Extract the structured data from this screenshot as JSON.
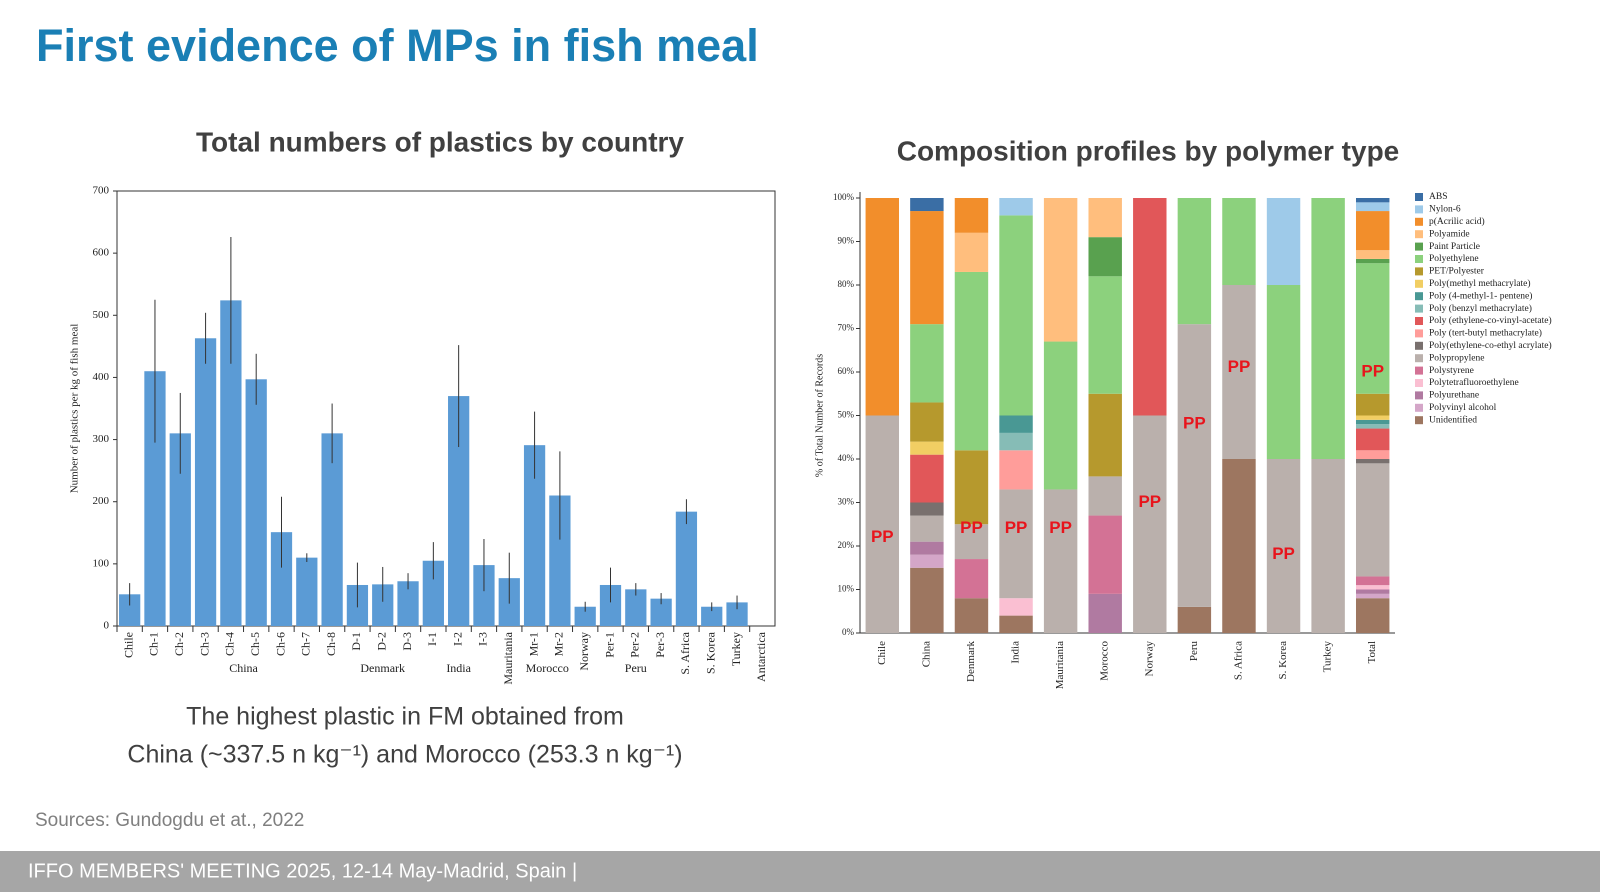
{
  "slide": {
    "title": "First evidence of MPs in fish meal",
    "caption": [
      "The highest plastic in FM obtained from",
      "China (~337.5 n kg⁻¹) and Morocco (253.3 n kg⁻¹)"
    ],
    "source": "Sources: Gundogdu et at., 2022",
    "footer": "IFFO MEMBERS' MEETING 2025, 12-14 May-Madrid, Spain |"
  },
  "chart_data": [
    {
      "type": "bar",
      "title": "Total numbers of plastics by country",
      "ylabel": "Number of plastics per kg of fish meal",
      "categories": [
        "Chile",
        "Ch-1",
        "Ch-2",
        "Ch-3",
        "Ch-4",
        "Ch-5",
        "Ch-6",
        "Ch-7",
        "Ch-8",
        "D-1",
        "D-2",
        "D-3",
        "I-1",
        "I-2",
        "I-3",
        "Mauritania",
        "Mr-1",
        "Mr-2",
        "Norway",
        "Per-1",
        "Per-2",
        "Per-3",
        "S. Africa",
        "S. Korea",
        "Turkey",
        "Antarctica"
      ],
      "values": [
        51,
        410,
        310,
        463,
        524,
        397,
        151,
        110,
        310,
        66,
        67,
        72,
        105,
        370,
        98,
        77,
        291,
        210,
        31,
        66,
        59,
        44,
        184,
        31,
        38,
        0
      ],
      "errors": [
        18,
        115,
        65,
        41,
        102,
        41,
        57,
        7,
        48,
        36,
        28,
        13,
        30,
        82,
        42,
        41,
        54,
        71,
        8,
        28,
        10,
        9,
        20,
        7,
        11,
        0
      ],
      "groups": [
        {
          "name": "China",
          "first": 1,
          "last": 8
        },
        {
          "name": "Denmark",
          "first": 9,
          "last": 11
        },
        {
          "name": "India",
          "first": 12,
          "last": 14
        },
        {
          "name": "Morocco",
          "first": 16,
          "last": 17
        },
        {
          "name": "Peru",
          "first": 19,
          "last": 21
        }
      ],
      "color": "#5b9bd5",
      "ylim": [
        0,
        700
      ],
      "yticks": [
        0,
        100,
        200,
        300,
        400,
        500,
        600,
        700
      ]
    },
    {
      "type": "stacked_bar",
      "title": "Composition profiles by polymer type",
      "ylabel": "% of Total Number of Records",
      "categories": [
        "Chile",
        "China",
        "Denmark",
        "India",
        "Mauritania",
        "Morocco",
        "Norway",
        "Peru",
        "S. Africa",
        "S. Korea",
        "Turkey",
        "Total"
      ],
      "series": [
        {
          "name": "ABS",
          "color": "#3a6ea5",
          "values": [
            0,
            3,
            0,
            0,
            0,
            0,
            0,
            0,
            0,
            0,
            0,
            1
          ]
        },
        {
          "name": "Nylon-6",
          "color": "#9ecae9",
          "values": [
            0,
            0,
            0,
            4,
            0,
            0,
            0,
            0,
            0,
            20,
            0,
            2
          ]
        },
        {
          "name": "p(Acrilic acid)",
          "color": "#f28e2b",
          "values": [
            50,
            26,
            8,
            0,
            0,
            0,
            0,
            0,
            0,
            0,
            0,
            9
          ]
        },
        {
          "name": "Polyamide",
          "color": "#ffbe7d",
          "values": [
            0,
            0,
            9,
            0,
            33,
            9,
            0,
            0,
            0,
            0,
            0,
            2
          ]
        },
        {
          "name": "Paint Particle",
          "color": "#59a14f",
          "values": [
            0,
            0,
            0,
            0,
            0,
            9,
            0,
            0,
            0,
            0,
            0,
            1
          ]
        },
        {
          "name": "Polyethylene",
          "color": "#8cd17d",
          "values": [
            0,
            18,
            41,
            46,
            34,
            27,
            0,
            29,
            20,
            40,
            60,
            30
          ]
        },
        {
          "name": "PET/Polyester",
          "color": "#b6992d",
          "values": [
            0,
            9,
            17,
            0,
            0,
            19,
            0,
            0,
            0,
            0,
            0,
            5
          ]
        },
        {
          "name": "Poly(methyl methacrylate)",
          "color": "#f1ce63",
          "values": [
            0,
            3,
            0,
            0,
            0,
            0,
            0,
            0,
            0,
            0,
            0,
            1
          ]
        },
        {
          "name": "Poly (4-methyl-1- pentene)",
          "color": "#499894",
          "values": [
            0,
            0,
            0,
            4,
            0,
            0,
            0,
            0,
            0,
            0,
            0,
            1
          ]
        },
        {
          "name": "Poly (benzyl methacrylate)",
          "color": "#86bcb6",
          "values": [
            0,
            0,
            0,
            4,
            0,
            0,
            0,
            0,
            0,
            0,
            0,
            1
          ]
        },
        {
          "name": "Poly (ethylene-co-vinyl-acetate)",
          "color": "#e15759",
          "values": [
            0,
            11,
            0,
            0,
            0,
            0,
            50,
            0,
            0,
            0,
            0,
            5
          ]
        },
        {
          "name": "Poly (tert-butyl methacrylate)",
          "color": "#ff9d9a",
          "values": [
            0,
            0,
            0,
            9,
            0,
            0,
            0,
            0,
            0,
            0,
            0,
            2
          ]
        },
        {
          "name": "Poly(ethylene-co-ethyl acrylate)",
          "color": "#79706e",
          "values": [
            0,
            3,
            0,
            0,
            0,
            0,
            0,
            0,
            0,
            0,
            0,
            1
          ]
        },
        {
          "name": "Polypropylene",
          "color": "#bab0ac",
          "values": [
            50,
            6,
            8,
            25,
            33,
            9,
            50,
            65,
            40,
            40,
            40,
            26
          ]
        },
        {
          "name": "Polystyrene",
          "color": "#d37295",
          "values": [
            0,
            0,
            9,
            0,
            0,
            18,
            0,
            0,
            0,
            0,
            0,
            2
          ]
        },
        {
          "name": "Polytetrafluoroethylene",
          "color": "#fabfd2",
          "values": [
            0,
            0,
            0,
            4,
            0,
            0,
            0,
            0,
            0,
            0,
            0,
            1
          ]
        },
        {
          "name": "Polyurethane",
          "color": "#b07aa1",
          "values": [
            0,
            3,
            0,
            0,
            0,
            9,
            0,
            0,
            0,
            0,
            0,
            1
          ]
        },
        {
          "name": "Polyvinyl alcohol",
          "color": "#d4a6c8",
          "values": [
            0,
            3,
            0,
            0,
            0,
            0,
            0,
            0,
            0,
            0,
            0,
            1
          ]
        },
        {
          "name": "Unidentified",
          "color": "#9d7660",
          "values": [
            0,
            15,
            8,
            4,
            0,
            0,
            0,
            6,
            40,
            0,
            0,
            8
          ]
        }
      ],
      "annotations": [
        {
          "text": "PP",
          "category": 0,
          "y": 22
        },
        {
          "text": "PP",
          "category": 2,
          "y": 24
        },
        {
          "text": "PP",
          "category": 3,
          "y": 24
        },
        {
          "text": "PP",
          "category": 4,
          "y": 24
        },
        {
          "text": "PP",
          "category": 6,
          "y": 30
        },
        {
          "text": "PP",
          "category": 7,
          "y": 48
        },
        {
          "text": "PP",
          "category": 8,
          "y": 61
        },
        {
          "text": "PP",
          "category": 9,
          "y": 18
        },
        {
          "text": "PP",
          "category": 11,
          "y": 60
        }
      ],
      "ylim": [
        0,
        100
      ],
      "yticks": [
        {
          "value": 0,
          "label": "0%"
        },
        {
          "value": 10,
          "label": "10%"
        },
        {
          "value": 20,
          "label": "20%"
        },
        {
          "value": 30,
          "label": "30%"
        },
        {
          "value": 40,
          "label": "40%"
        },
        {
          "value": 50,
          "label": "50%"
        },
        {
          "value": 60,
          "label": "60%"
        },
        {
          "value": 70,
          "label": "70%"
        },
        {
          "value": 80,
          "label": "80%"
        },
        {
          "value": 90,
          "label": "90%"
        },
        {
          "value": 100,
          "label": "100%"
        }
      ],
      "legend": "right"
    }
  ]
}
